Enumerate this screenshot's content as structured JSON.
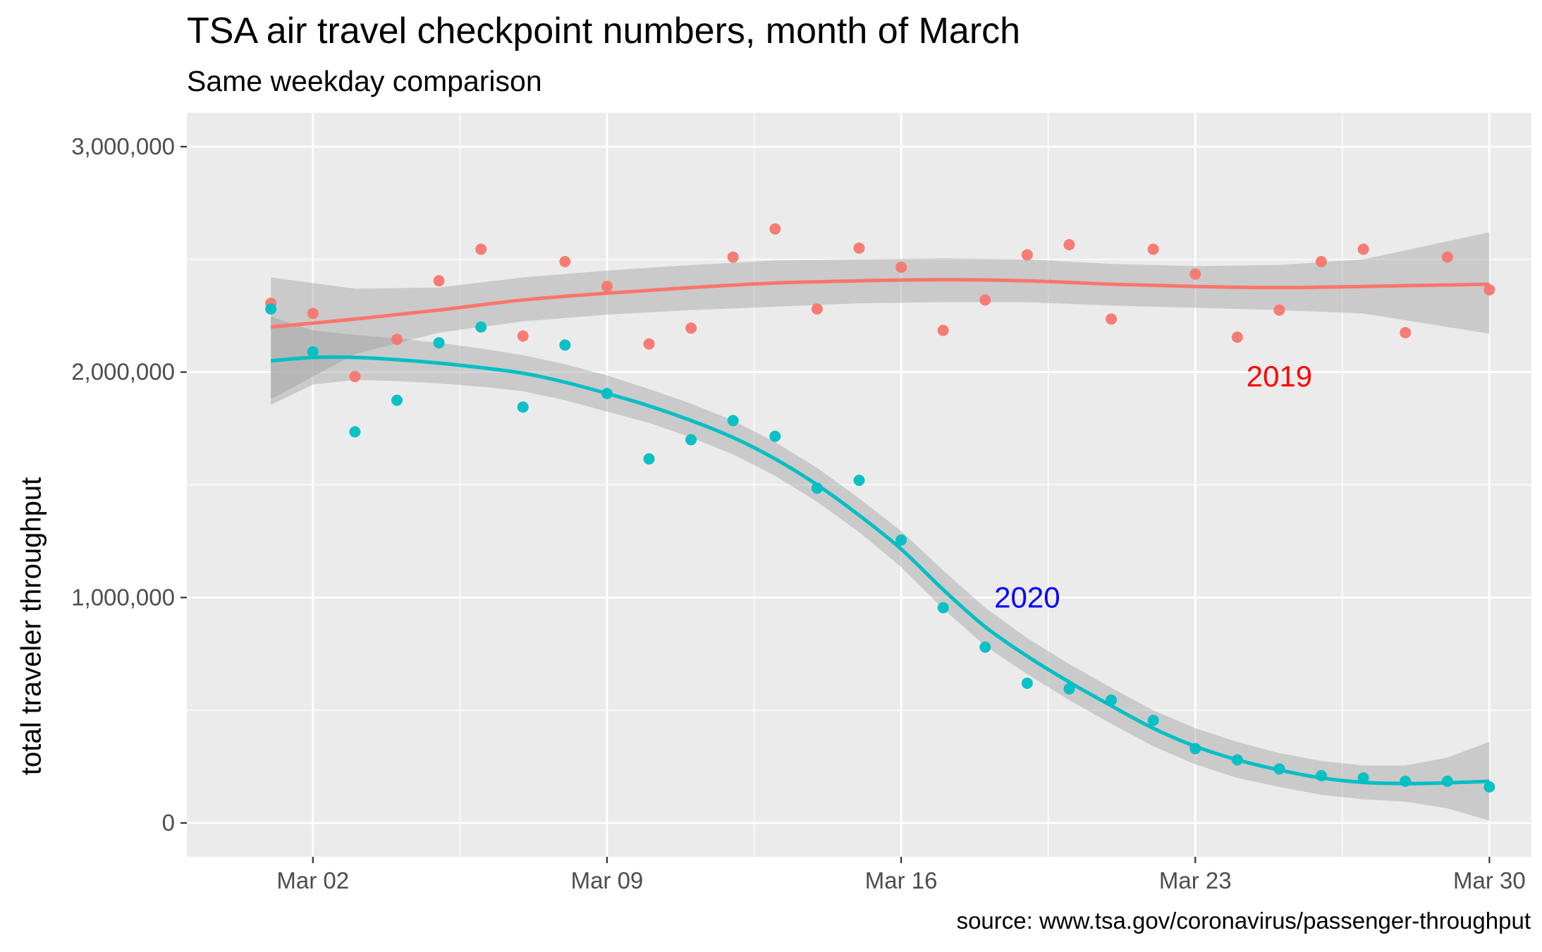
{
  "chart_data": {
    "type": "scatter",
    "title": "TSA air travel checkpoint numbers, month of March",
    "subtitle": "Same weekday comparison",
    "caption": "source: www.tsa.gov/coronavirus/passenger-throughput",
    "xlabel": "",
    "ylabel": "total traveler throughput",
    "xlim": [
      "2020-02-28",
      "2020-03-31"
    ],
    "ylim": [
      -150000,
      3150000
    ],
    "x_ticks": [
      {
        "date": "2020-03-02",
        "label": "Mar 02"
      },
      {
        "date": "2020-03-09",
        "label": "Mar 09"
      },
      {
        "date": "2020-03-16",
        "label": "Mar 16"
      },
      {
        "date": "2020-03-23",
        "label": "Mar 23"
      },
      {
        "date": "2020-03-30",
        "label": "Mar 30"
      }
    ],
    "y_ticks": [
      {
        "value": 0,
        "label": "0"
      },
      {
        "value": 1000000,
        "label": "1,000,000"
      },
      {
        "value": 2000000,
        "label": "2,000,000"
      },
      {
        "value": 3000000,
        "label": "3,000,000"
      }
    ],
    "grid": true,
    "legend": "none",
    "smoothing": "loess with confidence band",
    "series": [
      {
        "name": "2019",
        "color": "#F8766D",
        "label_color": "#FF0000",
        "label_at": {
          "date": "2020-03-25",
          "value": 1980000
        },
        "points": [
          [
            "2020-03-01",
            2305000
          ],
          [
            "2020-03-02",
            2260000
          ],
          [
            "2020-03-03",
            1980000
          ],
          [
            "2020-03-04",
            2145000
          ],
          [
            "2020-03-05",
            2405000
          ],
          [
            "2020-03-06",
            2545000
          ],
          [
            "2020-03-07",
            2160000
          ],
          [
            "2020-03-08",
            2490000
          ],
          [
            "2020-03-09",
            2380000
          ],
          [
            "2020-03-10",
            2125000
          ],
          [
            "2020-03-11",
            2195000
          ],
          [
            "2020-03-12",
            2510000
          ],
          [
            "2020-03-13",
            2635000
          ],
          [
            "2020-03-14",
            2280000
          ],
          [
            "2020-03-15",
            2550000
          ],
          [
            "2020-03-16",
            2465000
          ],
          [
            "2020-03-17",
            2185000
          ],
          [
            "2020-03-18",
            2320000
          ],
          [
            "2020-03-19",
            2520000
          ],
          [
            "2020-03-20",
            2565000
          ],
          [
            "2020-03-21",
            2235000
          ],
          [
            "2020-03-22",
            2545000
          ],
          [
            "2020-03-23",
            2435000
          ],
          [
            "2020-03-24",
            2155000
          ],
          [
            "2020-03-25",
            2275000
          ],
          [
            "2020-03-26",
            2490000
          ],
          [
            "2020-03-27",
            2545000
          ],
          [
            "2020-03-28",
            2175000
          ],
          [
            "2020-03-29",
            2510000
          ],
          [
            "2020-03-30",
            2365000
          ]
        ],
        "smooth": [
          [
            "2020-03-01",
            2200000
          ],
          [
            "2020-03-03",
            2235000
          ],
          [
            "2020-03-05",
            2275000
          ],
          [
            "2020-03-07",
            2320000
          ],
          [
            "2020-03-09",
            2350000
          ],
          [
            "2020-03-11",
            2375000
          ],
          [
            "2020-03-13",
            2395000
          ],
          [
            "2020-03-15",
            2405000
          ],
          [
            "2020-03-17",
            2410000
          ],
          [
            "2020-03-19",
            2405000
          ],
          [
            "2020-03-21",
            2390000
          ],
          [
            "2020-03-23",
            2380000
          ],
          [
            "2020-03-25",
            2375000
          ],
          [
            "2020-03-27",
            2380000
          ],
          [
            "2020-03-30",
            2390000
          ]
        ],
        "band_upper": [
          [
            "2020-03-01",
            2420000
          ],
          [
            "2020-03-03",
            2370000
          ],
          [
            "2020-03-05",
            2375000
          ],
          [
            "2020-03-07",
            2420000
          ],
          [
            "2020-03-09",
            2450000
          ],
          [
            "2020-03-11",
            2475000
          ],
          [
            "2020-03-13",
            2495000
          ],
          [
            "2020-03-15",
            2500000
          ],
          [
            "2020-03-17",
            2505000
          ],
          [
            "2020-03-19",
            2500000
          ],
          [
            "2020-03-21",
            2480000
          ],
          [
            "2020-03-23",
            2470000
          ],
          [
            "2020-03-25",
            2475000
          ],
          [
            "2020-03-27",
            2500000
          ],
          [
            "2020-03-30",
            2620000
          ]
        ],
        "band_lower": [
          [
            "2020-03-01",
            1880000
          ],
          [
            "2020-03-03",
            2080000
          ],
          [
            "2020-03-05",
            2175000
          ],
          [
            "2020-03-07",
            2225000
          ],
          [
            "2020-03-09",
            2255000
          ],
          [
            "2020-03-11",
            2275000
          ],
          [
            "2020-03-13",
            2290000
          ],
          [
            "2020-03-15",
            2305000
          ],
          [
            "2020-03-17",
            2310000
          ],
          [
            "2020-03-19",
            2310000
          ],
          [
            "2020-03-21",
            2295000
          ],
          [
            "2020-03-23",
            2285000
          ],
          [
            "2020-03-25",
            2275000
          ],
          [
            "2020-03-27",
            2260000
          ],
          [
            "2020-03-30",
            2170000
          ]
        ]
      },
      {
        "name": "2020",
        "color": "#00BFC4",
        "label_color": "#0000FF",
        "label_at": {
          "date": "2020-03-19",
          "value": 1000000
        },
        "points": [
          [
            "2020-03-01",
            2280000
          ],
          [
            "2020-03-02",
            2090000
          ],
          [
            "2020-03-03",
            1735000
          ],
          [
            "2020-03-04",
            1875000
          ],
          [
            "2020-03-05",
            2130000
          ],
          [
            "2020-03-06",
            2200000
          ],
          [
            "2020-03-07",
            1845000
          ],
          [
            "2020-03-08",
            2120000
          ],
          [
            "2020-03-09",
            1905000
          ],
          [
            "2020-03-10",
            1615000
          ],
          [
            "2020-03-11",
            1700000
          ],
          [
            "2020-03-12",
            1785000
          ],
          [
            "2020-03-13",
            1715000
          ],
          [
            "2020-03-14",
            1485000
          ],
          [
            "2020-03-15",
            1520000
          ],
          [
            "2020-03-16",
            1255000
          ],
          [
            "2020-03-17",
            955000
          ],
          [
            "2020-03-18",
            780000
          ],
          [
            "2020-03-19",
            620000
          ],
          [
            "2020-03-20",
            595000
          ],
          [
            "2020-03-21",
            545000
          ],
          [
            "2020-03-22",
            455000
          ],
          [
            "2020-03-23",
            330000
          ],
          [
            "2020-03-24",
            280000
          ],
          [
            "2020-03-25",
            240000
          ],
          [
            "2020-03-26",
            210000
          ],
          [
            "2020-03-27",
            200000
          ],
          [
            "2020-03-28",
            185000
          ],
          [
            "2020-03-29",
            185000
          ],
          [
            "2020-03-30",
            160000
          ]
        ],
        "smooth": [
          [
            "2020-03-01",
            2050000
          ],
          [
            "2020-03-02",
            2065000
          ],
          [
            "2020-03-03",
            2065000
          ],
          [
            "2020-03-04",
            2055000
          ],
          [
            "2020-03-05",
            2040000
          ],
          [
            "2020-03-06",
            2020000
          ],
          [
            "2020-03-07",
            1995000
          ],
          [
            "2020-03-08",
            1955000
          ],
          [
            "2020-03-09",
            1905000
          ],
          [
            "2020-03-10",
            1850000
          ],
          [
            "2020-03-11",
            1785000
          ],
          [
            "2020-03-12",
            1710000
          ],
          [
            "2020-03-13",
            1615000
          ],
          [
            "2020-03-14",
            1500000
          ],
          [
            "2020-03-15",
            1365000
          ],
          [
            "2020-03-16",
            1215000
          ],
          [
            "2020-03-17",
            1035000
          ],
          [
            "2020-03-18",
            870000
          ],
          [
            "2020-03-19",
            740000
          ],
          [
            "2020-03-20",
            625000
          ],
          [
            "2020-03-21",
            520000
          ],
          [
            "2020-03-22",
            420000
          ],
          [
            "2020-03-23",
            340000
          ],
          [
            "2020-03-24",
            280000
          ],
          [
            "2020-03-25",
            235000
          ],
          [
            "2020-03-26",
            200000
          ],
          [
            "2020-03-27",
            180000
          ],
          [
            "2020-03-28",
            175000
          ],
          [
            "2020-03-29",
            178000
          ],
          [
            "2020-03-30",
            185000
          ]
        ],
        "band_upper": [
          [
            "2020-03-01",
            2245000
          ],
          [
            "2020-03-02",
            2185000
          ],
          [
            "2020-03-03",
            2165000
          ],
          [
            "2020-03-04",
            2150000
          ],
          [
            "2020-03-05",
            2130000
          ],
          [
            "2020-03-06",
            2105000
          ],
          [
            "2020-03-07",
            2075000
          ],
          [
            "2020-03-08",
            2035000
          ],
          [
            "2020-03-09",
            1985000
          ],
          [
            "2020-03-10",
            1925000
          ],
          [
            "2020-03-11",
            1860000
          ],
          [
            "2020-03-12",
            1785000
          ],
          [
            "2020-03-13",
            1690000
          ],
          [
            "2020-03-14",
            1575000
          ],
          [
            "2020-03-15",
            1440000
          ],
          [
            "2020-03-16",
            1295000
          ],
          [
            "2020-03-17",
            1120000
          ],
          [
            "2020-03-18",
            955000
          ],
          [
            "2020-03-19",
            820000
          ],
          [
            "2020-03-20",
            705000
          ],
          [
            "2020-03-21",
            600000
          ],
          [
            "2020-03-22",
            500000
          ],
          [
            "2020-03-23",
            420000
          ],
          [
            "2020-03-24",
            360000
          ],
          [
            "2020-03-25",
            310000
          ],
          [
            "2020-03-26",
            275000
          ],
          [
            "2020-03-27",
            255000
          ],
          [
            "2020-03-28",
            255000
          ],
          [
            "2020-03-29",
            290000
          ],
          [
            "2020-03-30",
            360000
          ]
        ],
        "band_lower": [
          [
            "2020-03-01",
            1855000
          ],
          [
            "2020-03-02",
            1945000
          ],
          [
            "2020-03-03",
            1965000
          ],
          [
            "2020-03-04",
            1960000
          ],
          [
            "2020-03-05",
            1950000
          ],
          [
            "2020-03-06",
            1935000
          ],
          [
            "2020-03-07",
            1915000
          ],
          [
            "2020-03-08",
            1875000
          ],
          [
            "2020-03-09",
            1825000
          ],
          [
            "2020-03-10",
            1775000
          ],
          [
            "2020-03-11",
            1710000
          ],
          [
            "2020-03-12",
            1635000
          ],
          [
            "2020-03-13",
            1540000
          ],
          [
            "2020-03-14",
            1425000
          ],
          [
            "2020-03-15",
            1290000
          ],
          [
            "2020-03-16",
            1135000
          ],
          [
            "2020-03-17",
            950000
          ],
          [
            "2020-03-18",
            785000
          ],
          [
            "2020-03-19",
            660000
          ],
          [
            "2020-03-20",
            545000
          ],
          [
            "2020-03-21",
            440000
          ],
          [
            "2020-03-22",
            340000
          ],
          [
            "2020-03-23",
            260000
          ],
          [
            "2020-03-24",
            200000
          ],
          [
            "2020-03-25",
            160000
          ],
          [
            "2020-03-26",
            125000
          ],
          [
            "2020-03-27",
            105000
          ],
          [
            "2020-03-28",
            95000
          ],
          [
            "2020-03-29",
            65000
          ],
          [
            "2020-03-30",
            10000
          ]
        ]
      }
    ]
  }
}
